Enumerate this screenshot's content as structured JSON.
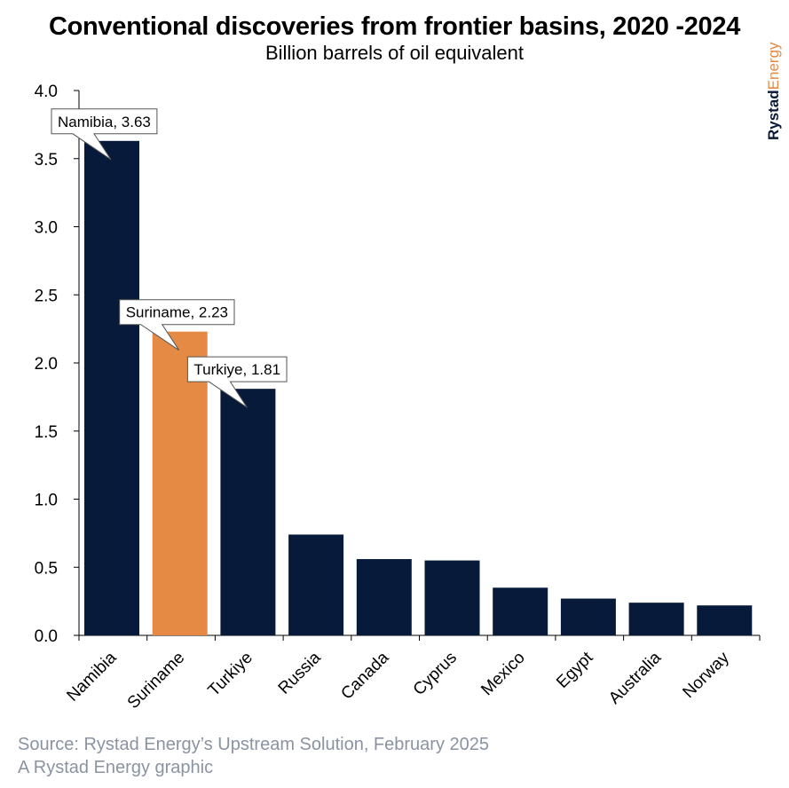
{
  "chart_data": {
    "type": "bar",
    "title": "Conventional discoveries from frontier basins, 2020 -2024",
    "subtitle": "Billion barrels of oil equivalent",
    "categories": [
      "Namibia",
      "Suriname",
      "Turkiye",
      "Russia",
      "Canada",
      "Cyprus",
      "Mexico",
      "Egypt",
      "Australia",
      "Norway"
    ],
    "values": [
      3.63,
      2.23,
      1.81,
      0.74,
      0.56,
      0.55,
      0.35,
      0.27,
      0.24,
      0.22
    ],
    "colors": [
      "#081a39",
      "#e48a45",
      "#081a39",
      "#081a39",
      "#081a39",
      "#081a39",
      "#081a39",
      "#081a39",
      "#081a39",
      "#081a39"
    ],
    "ylim": [
      0,
      4.0
    ],
    "yticks": [
      "0.0",
      "0.5",
      "1.0",
      "1.5",
      "2.0",
      "2.5",
      "3.0",
      "3.5",
      "4.0"
    ],
    "grid": false,
    "callouts": [
      {
        "category": "Namibia",
        "text": "Namibia, 3.63"
      },
      {
        "category": "Suriname",
        "text": "Suriname, 2.23"
      },
      {
        "category": "Turkiye",
        "text": "Turkiye, 1.81"
      }
    ]
  },
  "brand": {
    "part1": "Rystad",
    "part2": "Energy"
  },
  "source": {
    "line1": "Source: Rystad Energy’s Upstream Solution, February 2025",
    "line2": "A Rystad Energy graphic"
  }
}
